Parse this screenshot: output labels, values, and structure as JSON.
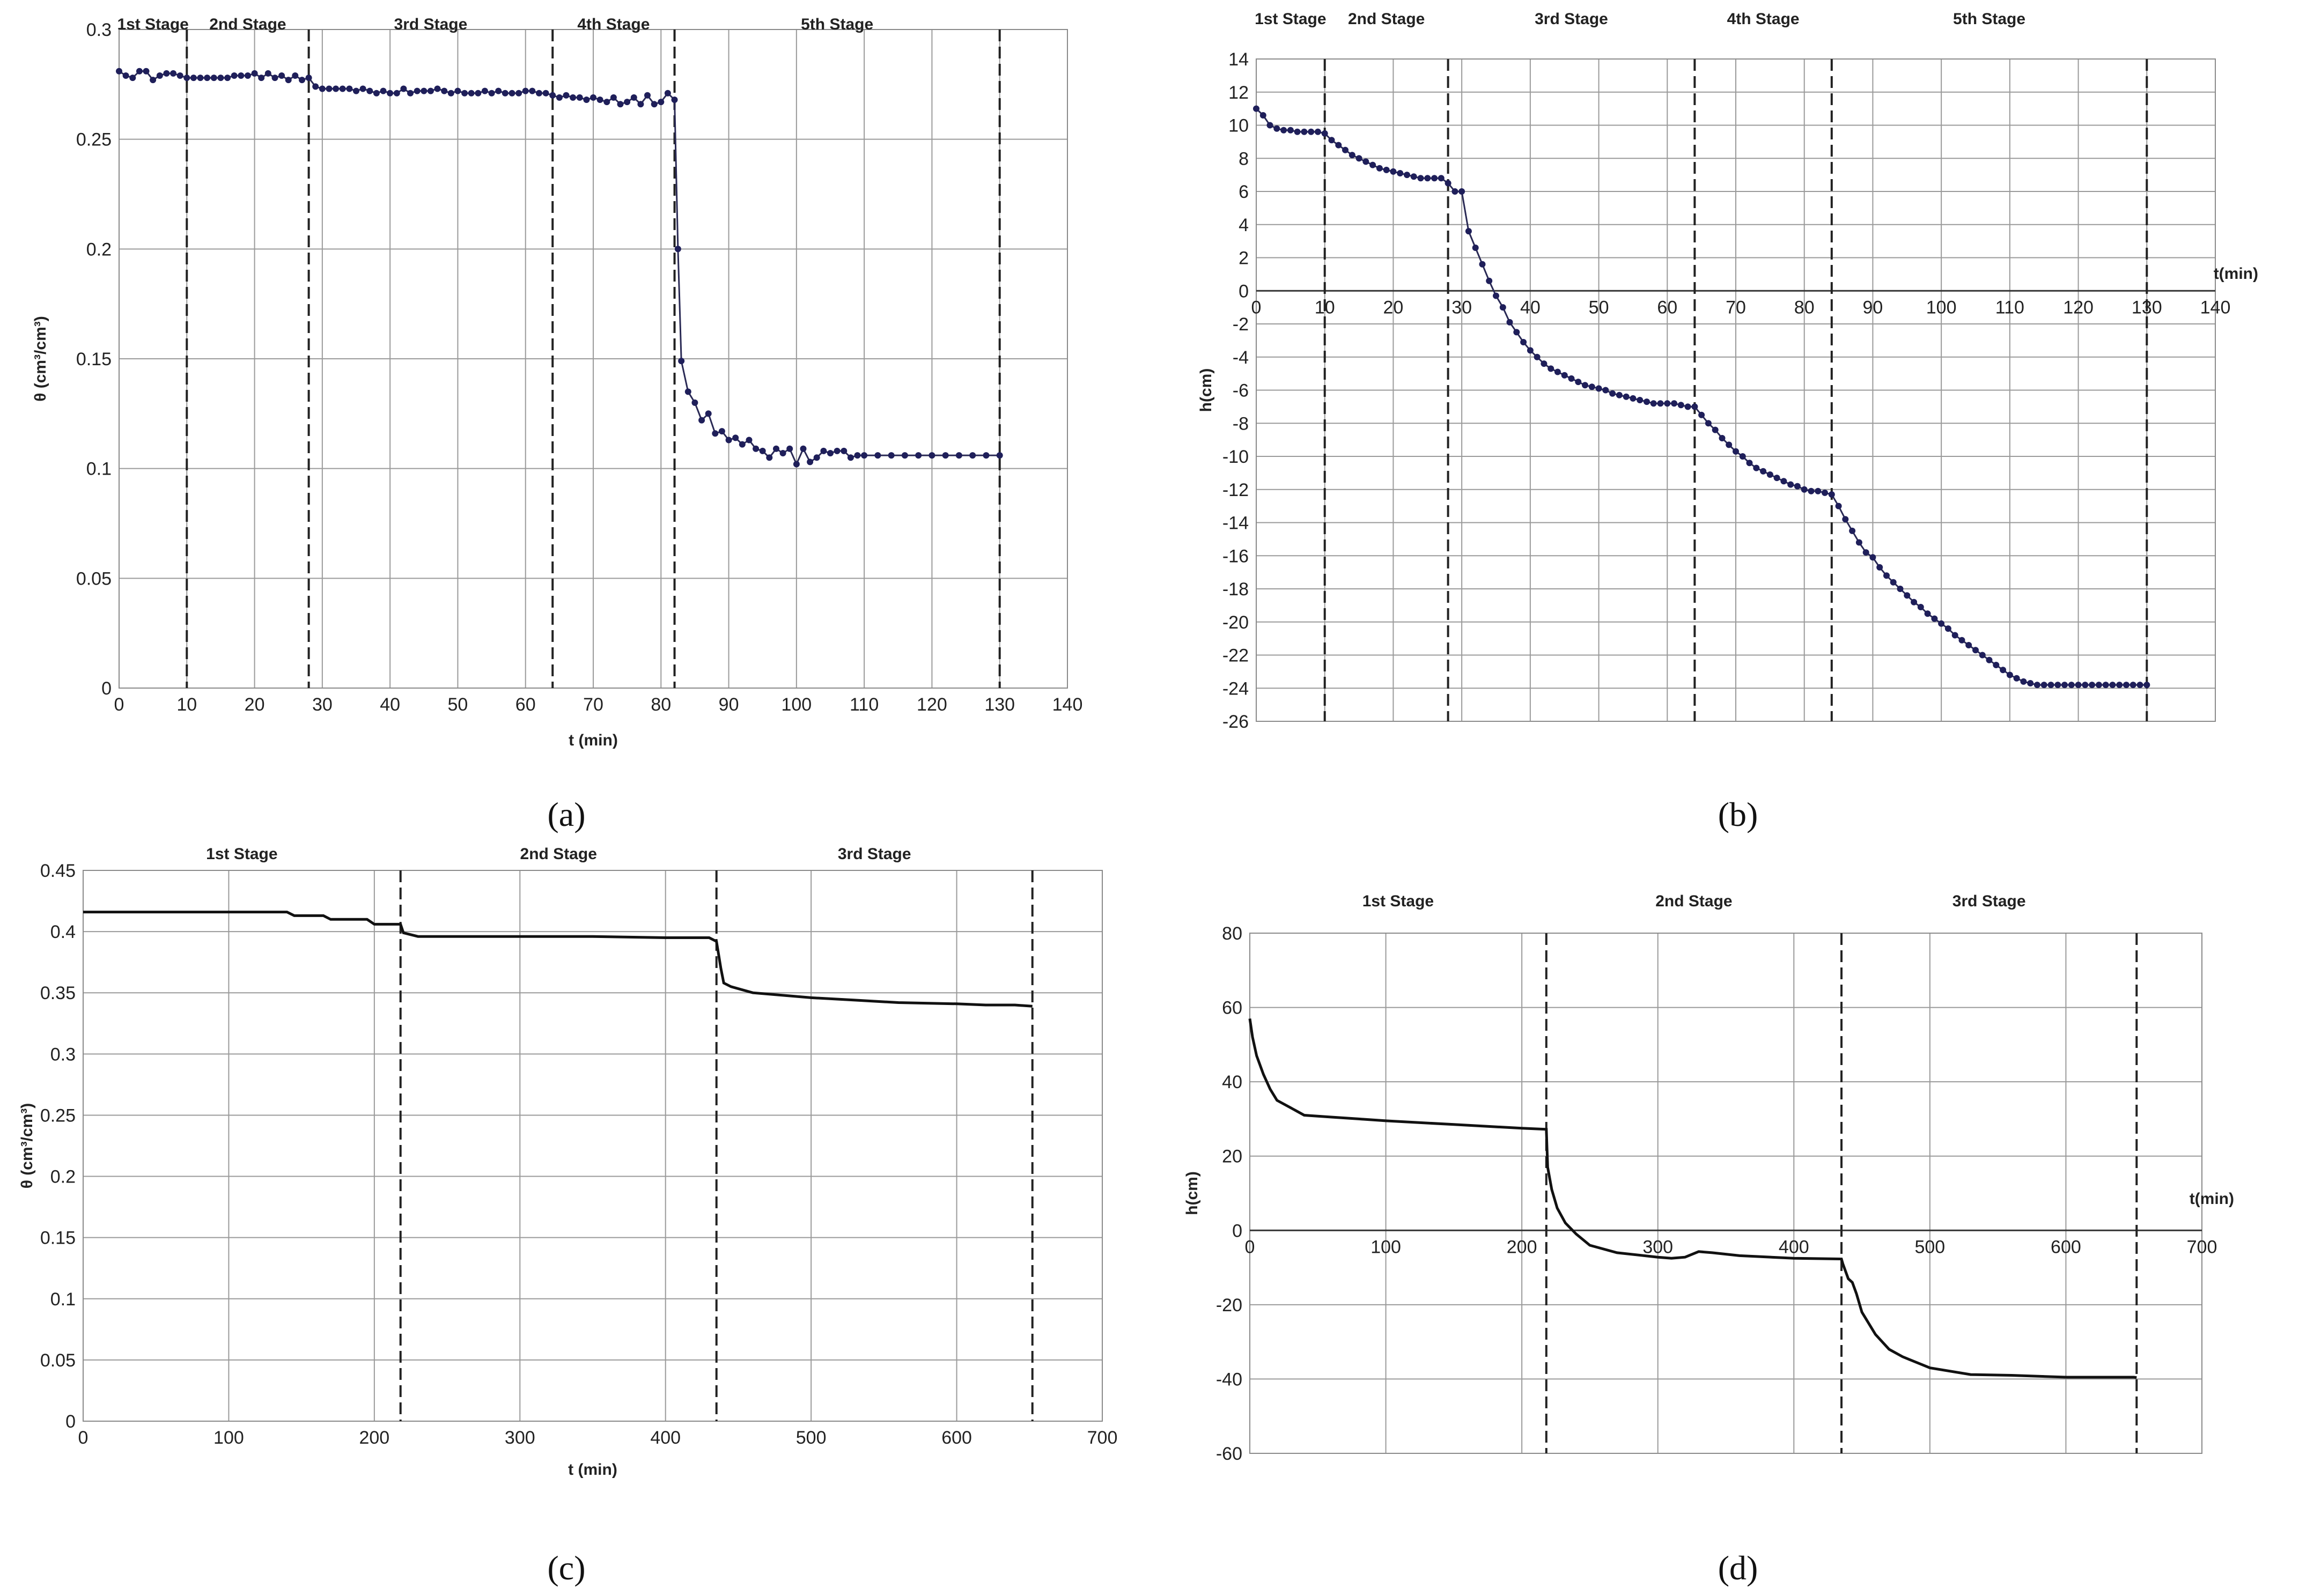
{
  "colors": {
    "marker": "#1f1f5a",
    "line": "#111111",
    "grid": "#9a9a9a",
    "divider": "#222222"
  },
  "chart_data": [
    {
      "type": "line",
      "panel_label": "(a)",
      "xlabel": "t (min)",
      "ylabel": "θ (cm³/cm³)",
      "xlim": [
        0,
        140
      ],
      "ylim": [
        0,
        0.3
      ],
      "xticks": [
        0,
        10,
        20,
        30,
        40,
        50,
        60,
        70,
        80,
        90,
        100,
        110,
        120,
        130,
        140
      ],
      "yticks": [
        0,
        0.05,
        0.1,
        0.15,
        0.2,
        0.25,
        0.3
      ],
      "stages": [
        "1st Stage",
        "2nd Stage",
        "3rd Stage",
        "4th Stage",
        "5th Stage"
      ],
      "stage_boundaries": [
        10,
        28,
        64,
        82,
        130
      ],
      "series": [
        {
          "name": "θ",
          "markers": true,
          "x": [
            0,
            1,
            2,
            3,
            4,
            5,
            6,
            7,
            8,
            9,
            10,
            11,
            12,
            13,
            14,
            15,
            16,
            17,
            18,
            19,
            20,
            21,
            22,
            23,
            24,
            25,
            26,
            27,
            28,
            29,
            30,
            31,
            32,
            33,
            34,
            35,
            36,
            37,
            38,
            39,
            40,
            41,
            42,
            43,
            44,
            45,
            46,
            47,
            48,
            49,
            50,
            51,
            52,
            53,
            54,
            55,
            56,
            57,
            58,
            59,
            60,
            61,
            62,
            63,
            64,
            65,
            66,
            67,
            68,
            69,
            70,
            71,
            72,
            73,
            74,
            75,
            76,
            77,
            78,
            79,
            80,
            81,
            82,
            82.5,
            83,
            84,
            85,
            86,
            87,
            88,
            89,
            90,
            91,
            92,
            93,
            94,
            95,
            96,
            97,
            98,
            99,
            100,
            101,
            102,
            103,
            104,
            105,
            106,
            107,
            108,
            109,
            110,
            112,
            114,
            116,
            118,
            120,
            122,
            124,
            126,
            128,
            130
          ],
          "y": [
            0.281,
            0.279,
            0.278,
            0.281,
            0.281,
            0.277,
            0.279,
            0.28,
            0.28,
            0.279,
            0.278,
            0.278,
            0.278,
            0.278,
            0.278,
            0.278,
            0.278,
            0.279,
            0.279,
            0.279,
            0.28,
            0.278,
            0.28,
            0.278,
            0.279,
            0.277,
            0.279,
            0.277,
            0.278,
            0.274,
            0.273,
            0.273,
            0.273,
            0.273,
            0.273,
            0.272,
            0.273,
            0.272,
            0.271,
            0.272,
            0.271,
            0.271,
            0.273,
            0.271,
            0.272,
            0.272,
            0.272,
            0.273,
            0.272,
            0.271,
            0.272,
            0.271,
            0.271,
            0.271,
            0.272,
            0.271,
            0.272,
            0.271,
            0.271,
            0.271,
            0.272,
            0.272,
            0.271,
            0.271,
            0.27,
            0.269,
            0.27,
            0.269,
            0.269,
            0.268,
            0.269,
            0.268,
            0.267,
            0.269,
            0.266,
            0.267,
            0.269,
            0.266,
            0.27,
            0.266,
            0.267,
            0.271,
            0.268,
            0.2,
            0.149,
            0.135,
            0.13,
            0.122,
            0.125,
            0.116,
            0.117,
            0.113,
            0.114,
            0.111,
            0.113,
            0.109,
            0.108,
            0.105,
            0.109,
            0.107,
            0.109,
            0.102,
            0.109,
            0.103,
            0.105,
            0.108,
            0.107,
            0.108,
            0.108,
            0.105,
            0.106,
            0.106,
            0.106,
            0.106,
            0.106,
            0.106,
            0.106,
            0.106,
            0.106,
            0.106,
            0.106,
            0.106
          ]
        }
      ]
    },
    {
      "type": "line",
      "panel_label": "(b)",
      "xlabel": "t(min)",
      "ylabel": "h(cm)",
      "xlim": [
        0,
        140
      ],
      "ylim": [
        -26,
        14
      ],
      "xticks": [
        0,
        10,
        20,
        30,
        40,
        50,
        60,
        70,
        80,
        90,
        100,
        110,
        120,
        130,
        140
      ],
      "yticks": [
        -26,
        -24,
        -22,
        -20,
        -18,
        -16,
        -14,
        -12,
        -10,
        -8,
        -6,
        -4,
        -2,
        0,
        2,
        4,
        6,
        8,
        10,
        12,
        14
      ],
      "stages": [
        "1st Stage",
        "2nd Stage",
        "3rd Stage",
        "4th Stage",
        "5th Stage"
      ],
      "stage_boundaries": [
        10,
        28,
        64,
        84,
        130
      ],
      "series": [
        {
          "name": "h",
          "markers": true,
          "x": [
            0,
            1,
            2,
            3,
            4,
            5,
            6,
            7,
            8,
            9,
            10,
            11,
            12,
            13,
            14,
            15,
            16,
            17,
            18,
            19,
            20,
            21,
            22,
            23,
            24,
            25,
            26,
            27,
            28,
            29,
            30,
            31,
            32,
            33,
            34,
            35,
            36,
            37,
            38,
            39,
            40,
            41,
            42,
            43,
            44,
            45,
            46,
            47,
            48,
            49,
            50,
            51,
            52,
            53,
            54,
            55,
            56,
            57,
            58,
            59,
            60,
            61,
            62,
            63,
            64,
            65,
            66,
            67,
            68,
            69,
            70,
            71,
            72,
            73,
            74,
            75,
            76,
            77,
            78,
            79,
            80,
            81,
            82,
            83,
            84,
            85,
            86,
            87,
            88,
            89,
            90,
            91,
            92,
            93,
            94,
            95,
            96,
            97,
            98,
            99,
            100,
            101,
            102,
            103,
            104,
            105,
            106,
            107,
            108,
            109,
            110,
            111,
            112,
            113,
            114,
            115,
            116,
            117,
            118,
            119,
            120,
            121,
            122,
            123,
            124,
            125,
            126,
            127,
            128,
            129,
            130
          ],
          "y": [
            11,
            10.6,
            10,
            9.8,
            9.7,
            9.7,
            9.6,
            9.6,
            9.6,
            9.6,
            9.5,
            9.1,
            8.8,
            8.5,
            8.2,
            8,
            7.8,
            7.6,
            7.4,
            7.3,
            7.2,
            7.1,
            7.0,
            6.9,
            6.8,
            6.8,
            6.8,
            6.8,
            6.5,
            6.0,
            6.0,
            3.6,
            2.6,
            1.6,
            0.6,
            -0.3,
            -1,
            -1.9,
            -2.5,
            -3.1,
            -3.6,
            -4.0,
            -4.4,
            -4.7,
            -4.9,
            -5.1,
            -5.3,
            -5.5,
            -5.7,
            -5.8,
            -5.9,
            -6.0,
            -6.2,
            -6.3,
            -6.4,
            -6.5,
            -6.6,
            -6.7,
            -6.8,
            -6.8,
            -6.8,
            -6.8,
            -6.9,
            -7.0,
            -7.0,
            -7.5,
            -8,
            -8.4,
            -8.9,
            -9.3,
            -9.7,
            -10.0,
            -10.4,
            -10.7,
            -10.9,
            -11.1,
            -11.3,
            -11.5,
            -11.7,
            -11.8,
            -12.0,
            -12.1,
            -12.1,
            -12.2,
            -12.3,
            -13.0,
            -13.8,
            -14.5,
            -15.2,
            -15.8,
            -16.1,
            -16.7,
            -17.2,
            -17.6,
            -18.0,
            -18.4,
            -18.8,
            -19.1,
            -19.5,
            -19.8,
            -20.1,
            -20.4,
            -20.8,
            -21.1,
            -21.4,
            -21.7,
            -22.0,
            -22.3,
            -22.6,
            -22.9,
            -23.2,
            -23.4,
            -23.6,
            -23.7,
            -23.8,
            -23.8,
            -23.8,
            -23.8,
            -23.8,
            -23.8,
            -23.8,
            -23.8,
            -23.8,
            -23.8,
            -23.8,
            -23.8,
            -23.8,
            -23.8,
            -23.8,
            -23.8,
            -23.8
          ]
        }
      ]
    },
    {
      "type": "line",
      "panel_label": "(c)",
      "xlabel": "t (min)",
      "ylabel": "θ (cm³/cm³)",
      "xlim": [
        0,
        700
      ],
      "ylim": [
        0,
        0.45
      ],
      "xticks": [
        0,
        100,
        200,
        300,
        400,
        500,
        600,
        700
      ],
      "yticks": [
        0,
        0.05,
        0.1,
        0.15,
        0.2,
        0.25,
        0.3,
        0.35,
        0.4,
        0.45
      ],
      "stages": [
        "1st Stage",
        "2nd Stage",
        "3rd Stage"
      ],
      "stage_boundaries": [
        218,
        435,
        652
      ],
      "series": [
        {
          "name": "θ",
          "markers": false,
          "x": [
            0,
            140,
            145,
            165,
            170,
            195,
            200,
            218,
            220,
            230,
            260,
            300,
            350,
            400,
            420,
            430,
            435,
            438,
            440,
            445,
            460,
            480,
            500,
            530,
            560,
            600,
            620,
            640,
            652
          ],
          "y": [
            0.416,
            0.416,
            0.413,
            0.413,
            0.41,
            0.41,
            0.406,
            0.406,
            0.399,
            0.396,
            0.396,
            0.396,
            0.396,
            0.395,
            0.395,
            0.395,
            0.392,
            0.37,
            0.358,
            0.355,
            0.35,
            0.348,
            0.346,
            0.344,
            0.342,
            0.341,
            0.34,
            0.34,
            0.339
          ]
        }
      ]
    },
    {
      "type": "line",
      "panel_label": "(d)",
      "xlabel": "t(min)",
      "ylabel": "h(cm)",
      "xlim": [
        0,
        700
      ],
      "ylim": [
        -60,
        80
      ],
      "xticks": [
        0,
        100,
        200,
        300,
        400,
        500,
        600,
        700
      ],
      "yticks": [
        -60,
        -40,
        -20,
        0,
        20,
        40,
        60,
        80
      ],
      "stages": [
        "1st Stage",
        "2nd Stage",
        "3rd Stage"
      ],
      "stage_boundaries": [
        218,
        435,
        652
      ],
      "series": [
        {
          "name": "h",
          "markers": false,
          "x": [
            0,
            2,
            5,
            10,
            15,
            20,
            30,
            40,
            60,
            80,
            100,
            150,
            200,
            218,
            219,
            222,
            226,
            232,
            240,
            250,
            270,
            300,
            310,
            320,
            330,
            340,
            360,
            400,
            435,
            436,
            440,
            443,
            446,
            450,
            460,
            470,
            480,
            500,
            530,
            560,
            600,
            650,
            652
          ],
          "y": [
            57,
            52,
            47,
            42,
            38,
            35,
            33,
            31,
            30.5,
            30,
            29.5,
            28.5,
            27.5,
            27.2,
            17,
            11,
            6,
            2,
            -1,
            -4,
            -6,
            -7.2,
            -7.5,
            -7.2,
            -5.7,
            -6,
            -6.8,
            -7.5,
            -7.7,
            -9,
            -13,
            -14,
            -17,
            -22,
            -28,
            -32,
            -34,
            -37,
            -38.8,
            -39,
            -39.5,
            -39.5,
            -39.6
          ]
        }
      ]
    }
  ]
}
